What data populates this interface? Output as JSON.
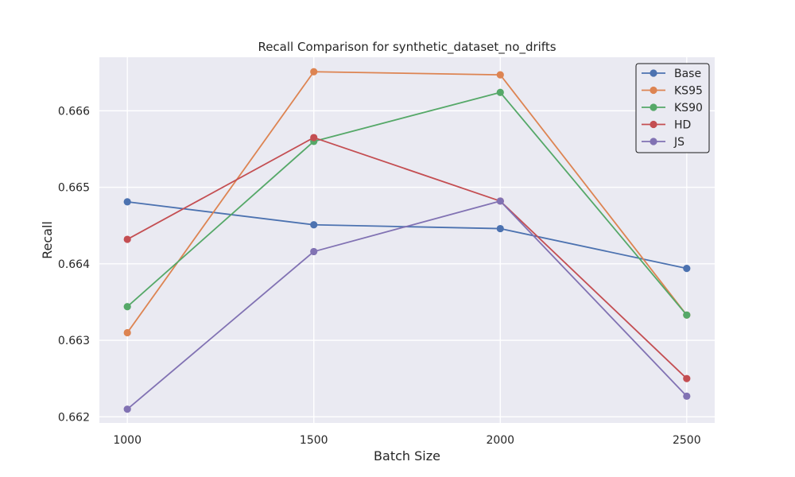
{
  "chart_data": {
    "type": "line",
    "title": "Recall Comparison for synthetic_dataset_no_drifts",
    "xlabel": "Batch Size",
    "ylabel": "Recall",
    "x": [
      1000,
      1500,
      2000,
      2500
    ],
    "x_tick_labels": [
      "1000",
      "1500",
      "2000",
      "2500"
    ],
    "y_ticks": [
      0.662,
      0.663,
      0.664,
      0.665,
      0.666
    ],
    "y_tick_labels": [
      "0.662",
      "0.663",
      "0.664",
      "0.665",
      "0.666"
    ],
    "xlim": [
      925,
      2575
    ],
    "ylim": [
      0.66192,
      0.6667
    ],
    "grid": true,
    "legend_position": "top-right",
    "series": [
      {
        "name": "Base",
        "color": "#4c72b0",
        "values": [
          0.66481,
          0.66451,
          0.66446,
          0.66394
        ]
      },
      {
        "name": "KS95",
        "color": "#dd8452",
        "values": [
          0.6631,
          0.66651,
          0.66647,
          0.66333
        ]
      },
      {
        "name": "KS90",
        "color": "#55a868",
        "values": [
          0.66344,
          0.6656,
          0.66624,
          0.66333
        ]
      },
      {
        "name": "HD",
        "color": "#c44e52",
        "values": [
          0.66432,
          0.66565,
          0.66482,
          0.6625
        ]
      },
      {
        "name": "JS",
        "color": "#8172b3",
        "values": [
          0.6621,
          0.66416,
          0.66482,
          0.66227
        ]
      }
    ]
  }
}
